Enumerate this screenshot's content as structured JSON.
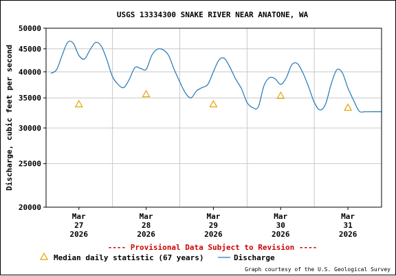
{
  "chart_data": {
    "type": "line",
    "title": "USGS 13334300 SNAKE RIVER NEAR ANATONE, WA",
    "ylabel": "Discharge, cubic feet per second",
    "xlabel": "",
    "y_scale": "log",
    "ylim": [
      20000,
      50000
    ],
    "y_ticks": [
      "20000",
      "25000",
      "30000",
      "35000",
      "40000",
      "45000",
      "50000"
    ],
    "y_tick_values": [
      20000,
      25000,
      30000,
      35000,
      40000,
      45000,
      50000
    ],
    "x_ticks": [
      {
        "month": "Mar",
        "day": "27",
        "year": "2026"
      },
      {
        "month": "Mar",
        "day": "28",
        "year": "2026"
      },
      {
        "month": "Mar",
        "day": "29",
        "year": "2026"
      },
      {
        "month": "Mar",
        "day": "30",
        "year": "2026"
      },
      {
        "month": "Mar",
        "day": "31",
        "year": "2026"
      }
    ],
    "grid": true,
    "legend_position": "bottom",
    "provisional_note": "---- Provisional Data Subject to Revision ----",
    "credit": "Graph courtesy of the U.S. Geological Survey",
    "series": [
      {
        "name": "Discharge",
        "color": "#1f77b4",
        "x": [
          "2026-03-26 14:00",
          "2026-03-26 16:00",
          "2026-03-26 18:00",
          "2026-03-26 20:00",
          "2026-03-26 22:00",
          "2026-03-27 00:00",
          "2026-03-27 02:00",
          "2026-03-27 04:00",
          "2026-03-27 06:00",
          "2026-03-27 08:00",
          "2026-03-27 10:00",
          "2026-03-27 12:00",
          "2026-03-27 14:00",
          "2026-03-27 16:00",
          "2026-03-27 18:00",
          "2026-03-27 20:00",
          "2026-03-27 22:00",
          "2026-03-28 00:00",
          "2026-03-28 02:00",
          "2026-03-28 04:00",
          "2026-03-28 06:00",
          "2026-03-28 08:00",
          "2026-03-28 10:00",
          "2026-03-28 12:00",
          "2026-03-28 14:00",
          "2026-03-28 16:00",
          "2026-03-28 18:00",
          "2026-03-28 20:00",
          "2026-03-28 22:00",
          "2026-03-29 00:00",
          "2026-03-29 02:00",
          "2026-03-29 04:00",
          "2026-03-29 06:00",
          "2026-03-29 08:00",
          "2026-03-29 10:00",
          "2026-03-29 12:00",
          "2026-03-29 14:00",
          "2026-03-29 16:00",
          "2026-03-29 18:00",
          "2026-03-29 20:00",
          "2026-03-29 22:00",
          "2026-03-30 00:00",
          "2026-03-30 02:00",
          "2026-03-30 04:00",
          "2026-03-30 06:00",
          "2026-03-30 08:00",
          "2026-03-30 10:00",
          "2026-03-30 12:00",
          "2026-03-30 14:00",
          "2026-03-30 16:00",
          "2026-03-30 18:00",
          "2026-03-30 20:00",
          "2026-03-30 22:00",
          "2026-03-31 00:00",
          "2026-03-31 02:00",
          "2026-03-31 04:00",
          "2026-03-31 06:00",
          "2026-03-31 08:00",
          "2026-03-31 10:00",
          "2026-03-31 12:00"
        ],
        "values": [
          39700,
          40400,
          43500,
          46500,
          46300,
          43500,
          42700,
          44800,
          46500,
          45600,
          42500,
          39000,
          37500,
          36900,
          38500,
          40900,
          40700,
          40500,
          43500,
          44900,
          44800,
          43500,
          40500,
          38000,
          35900,
          35000,
          36300,
          36900,
          37500,
          40000,
          42500,
          42800,
          40800,
          38500,
          36700,
          34200,
          33300,
          33400,
          37200,
          38800,
          38600,
          37500,
          38800,
          41500,
          41700,
          39700,
          37000,
          34200,
          32900,
          33900,
          37500,
          40400,
          39800,
          36800,
          34600,
          32700,
          32600,
          32600,
          32600,
          32600
        ]
      },
      {
        "name": "Median daily statistic (67 years)",
        "color": "#e8a000",
        "marker": "triangle",
        "x": [
          "2026-03-27 00:00",
          "2026-03-28 00:00",
          "2026-03-29 00:00",
          "2026-03-30 00:00",
          "2026-03-31 00:00"
        ],
        "values": [
          33900,
          35700,
          33900,
          35400,
          33300
        ]
      }
    ]
  }
}
